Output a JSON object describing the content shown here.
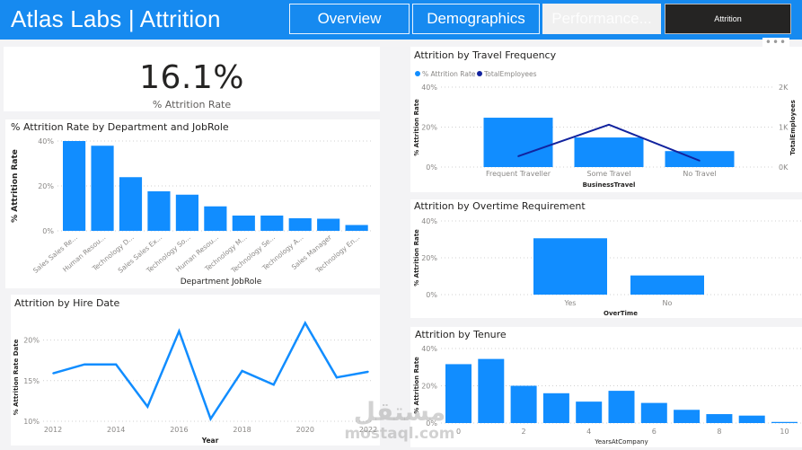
{
  "header": {
    "title": "Atlas Labs | Attrition",
    "tabs": [
      {
        "label": "Overview",
        "state": "default"
      },
      {
        "label": "Demographics",
        "state": "default"
      },
      {
        "label": "Performance...",
        "state": "disabled"
      },
      {
        "label": "Attrition",
        "state": "active"
      }
    ],
    "more_options_icon": "ellipsis-icon",
    "accent": "#168af0"
  },
  "kpi": {
    "value": "16.1%",
    "label": "% Attrition Rate"
  },
  "watermark": {
    "text_arabic": "مستقل",
    "text_latin": "mostaql.com"
  },
  "colors": {
    "bar": "#118dff",
    "line_dark": "#12239e",
    "grid": "#d0d0d0",
    "axis_text": "#8a8886"
  },
  "chart_data": [
    {
      "id": "dept",
      "type": "bar",
      "title": "% Attrition Rate by Department and JobRole",
      "xlabel": "Department JobRole",
      "ylabel": "% Attrition Rate",
      "ylim": [
        0,
        40
      ],
      "yticks": [
        0,
        20,
        40
      ],
      "ytick_labels": [
        "0%",
        "20%",
        "40%"
      ],
      "grid": true,
      "categories": [
        "Sales Sales Re...",
        "Human Resou...",
        "Technology D...",
        "Sales Sales Ex...",
        "Technology So...",
        "Human Resou...",
        "Technology M...",
        "Technology Se...",
        "Technology A...",
        "Sales Manager",
        "Technology En..."
      ],
      "values": [
        40.0,
        37.9,
        23.9,
        17.6,
        16.1,
        10.9,
        6.8,
        6.8,
        5.6,
        5.4,
        2.6
      ]
    },
    {
      "id": "hire",
      "type": "line",
      "title": "Attrition by Hire Date",
      "xlabel": "Year",
      "ylabel": "% Attrition Rate Date",
      "ylim": [
        10,
        22.5
      ],
      "yticks": [
        10,
        15,
        20
      ],
      "ytick_labels": [
        "10%",
        "15%",
        "20%"
      ],
      "xticks": [
        2012,
        2014,
        2016,
        2018,
        2020,
        2022
      ],
      "xtick_labels": [
        "2012",
        "2014",
        "2016",
        "2018",
        "2020",
        "2022"
      ],
      "grid": true,
      "x": [
        2012,
        2013,
        2014,
        2015,
        2016,
        2017,
        2018,
        2019,
        2020,
        2021,
        2022
      ],
      "values": [
        15.9,
        17.0,
        17.0,
        11.8,
        21.1,
        10.3,
        16.2,
        14.5,
        22.1,
        15.4,
        16.1
      ]
    },
    {
      "id": "travel",
      "type": "bar",
      "title": "Attrition by Travel Frequency",
      "xlabel": "BusinessTravel",
      "ylabel": "% Attrition Rate",
      "ylabel_right": "TotalEmployees",
      "legend": [
        "% Attrition Rate",
        "TotalEmployees"
      ],
      "legend_position": "top-left",
      "ylim": [
        0,
        40
      ],
      "yticks": [
        0,
        20,
        40
      ],
      "ytick_labels": [
        "0%",
        "20%",
        "40%"
      ],
      "ylim_right": [
        0,
        2000
      ],
      "yticks_right": [
        0,
        1000,
        2000
      ],
      "ytick_labels_right": [
        "0K",
        "1K",
        "2K"
      ],
      "grid": true,
      "categories": [
        "Frequent Traveller",
        "Some Travel",
        "No Travel"
      ],
      "series": [
        {
          "name": "% Attrition Rate",
          "type": "bar",
          "values": [
            24.7,
            14.8,
            8.0
          ]
        },
        {
          "name": "TotalEmployees",
          "type": "line",
          "values": [
            270,
            1060,
            160
          ]
        }
      ]
    },
    {
      "id": "overtime",
      "type": "bar",
      "title": "Attrition by Overtime Requirement",
      "xlabel": "OverTime",
      "ylabel": "% Attrition Rate",
      "ylim": [
        0,
        40
      ],
      "yticks": [
        0,
        20,
        40
      ],
      "ytick_labels": [
        "0%",
        "20%",
        "40%"
      ],
      "grid": true,
      "categories": [
        "Yes",
        "No"
      ],
      "values": [
        30.6,
        10.4
      ]
    },
    {
      "id": "tenure",
      "type": "bar",
      "title": "Attrition by Tenure",
      "xlabel": "YearsAtCompany",
      "ylabel": "% Attrition Rate",
      "ylim": [
        0,
        40
      ],
      "yticks": [
        0,
        20,
        40
      ],
      "ytick_labels": [
        "0%",
        "20%",
        "40%"
      ],
      "xtick_labels": [
        "0",
        "2",
        "4",
        "6",
        "8",
        "10"
      ],
      "grid": true,
      "categories": [
        0,
        1,
        2,
        3,
        4,
        5,
        6,
        7,
        8,
        9,
        10
      ],
      "values": [
        31.6,
        34.4,
        20.0,
        16.0,
        11.5,
        17.3,
        10.8,
        7.1,
        4.8,
        4.0,
        0.6
      ]
    }
  ]
}
